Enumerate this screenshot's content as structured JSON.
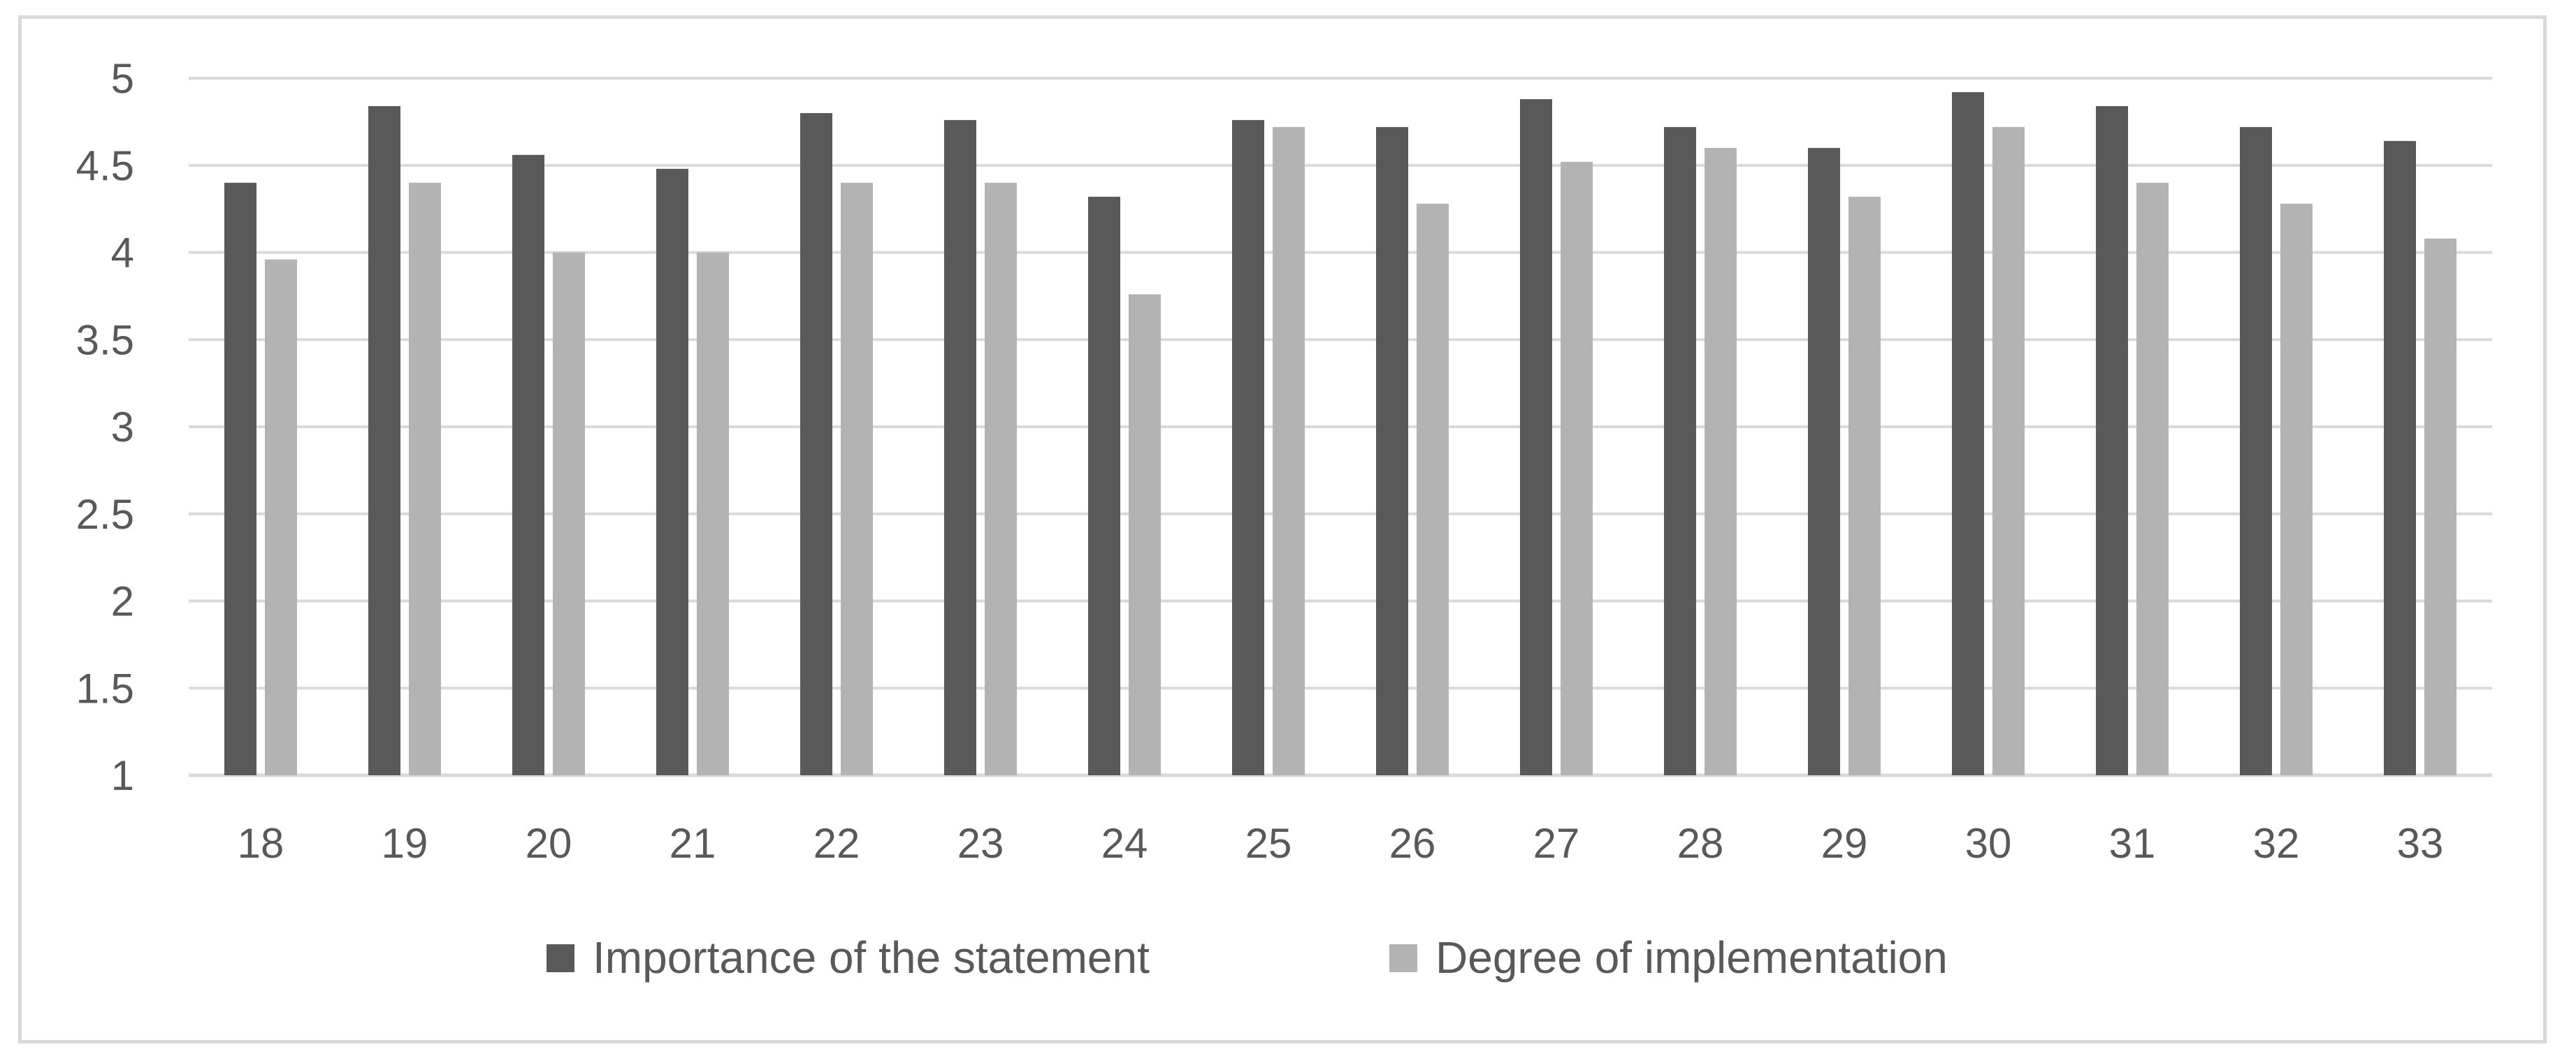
{
  "chart_data": {
    "type": "bar",
    "title": "",
    "xlabel": "",
    "ylabel": "",
    "ylim": [
      1,
      5
    ],
    "yticks": [
      "1",
      "1.5",
      "2",
      "2.5",
      "3",
      "3.5",
      "4",
      "4.5",
      "5"
    ],
    "grid": true,
    "legend_position": "bottom",
    "categories": [
      "18",
      "19",
      "20",
      "21",
      "22",
      "23",
      "24",
      "25",
      "26",
      "27",
      "28",
      "29",
      "30",
      "31",
      "32",
      "33"
    ],
    "series": [
      {
        "name": "Importance of the statement",
        "color": "#595959",
        "values": [
          4.4,
          4.84,
          4.56,
          4.48,
          4.8,
          4.76,
          4.32,
          4.76,
          4.72,
          4.88,
          4.72,
          4.6,
          4.92,
          4.84,
          4.72,
          4.64
        ]
      },
      {
        "name": "Degree of implementation",
        "color": "#b3b3b3",
        "values": [
          3.96,
          4.4,
          4.0,
          4.0,
          4.4,
          4.4,
          3.76,
          4.72,
          4.28,
          4.52,
          4.6,
          4.32,
          4.72,
          4.4,
          4.28,
          4.08
        ]
      }
    ]
  }
}
